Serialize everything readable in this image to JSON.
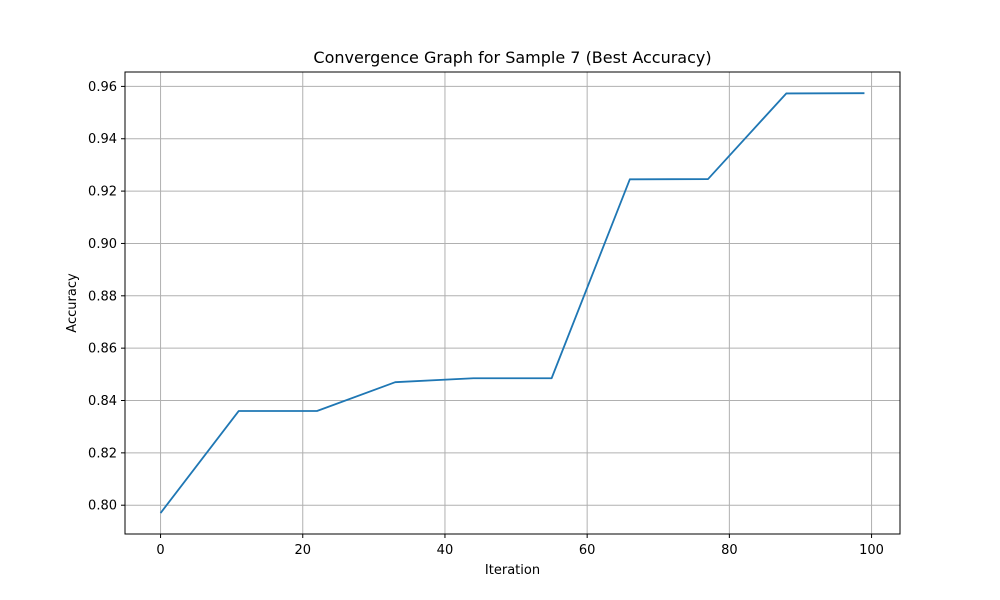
{
  "chart_data": {
    "type": "line",
    "title": "Convergence Graph for Sample 7 (Best Accuracy)",
    "xlabel": "Iteration",
    "ylabel": "Accuracy",
    "xlim": [
      -5,
      104
    ],
    "ylim": [
      0.789,
      0.9655
    ],
    "xticks": [
      0,
      20,
      40,
      60,
      80,
      100
    ],
    "yticks": [
      0.8,
      0.82,
      0.84,
      0.86,
      0.88,
      0.9,
      0.92,
      0.94,
      0.96
    ],
    "grid": true,
    "line_color": "#1f77b4",
    "series": [
      {
        "x": [
          0,
          11,
          22,
          33,
          44,
          55,
          66,
          77,
          88,
          99
        ],
        "y": [
          0.797,
          0.836,
          0.836,
          0.847,
          0.8485,
          0.8485,
          0.9245,
          0.9246,
          0.9573,
          0.9574
        ]
      }
    ]
  }
}
